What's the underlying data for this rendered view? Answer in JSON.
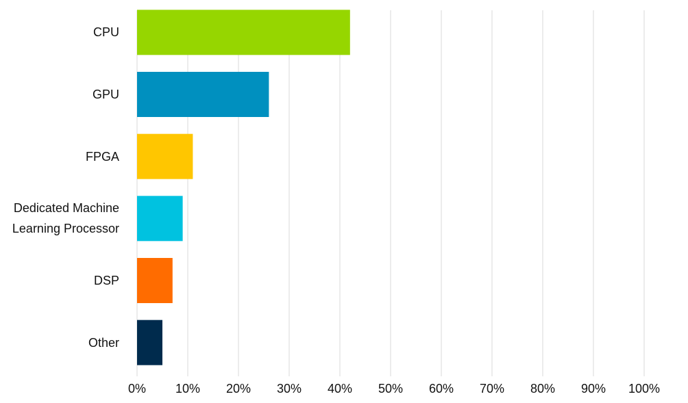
{
  "chart_data": {
    "type": "bar",
    "orientation": "horizontal",
    "categories": [
      "CPU",
      "GPU",
      "FPGA",
      "Dedicated Machine Learning Processor",
      "DSP",
      "Other"
    ],
    "values": [
      42,
      26,
      11,
      9,
      7,
      5
    ],
    "colors": [
      "#96d600",
      "#0090bf",
      "#ffc600",
      "#00c2e0",
      "#ff6c00",
      "#002b4d"
    ],
    "xlim": [
      0,
      100
    ],
    "xticks": [
      {
        "value": 0,
        "label": "0%"
      },
      {
        "value": 10,
        "label": "10%"
      },
      {
        "value": 20,
        "label": "20%"
      },
      {
        "value": 30,
        "label": "30%"
      },
      {
        "value": 40,
        "label": "40%"
      },
      {
        "value": 50,
        "label": "50%"
      },
      {
        "value": 60,
        "label": "60%"
      },
      {
        "value": 70,
        "label": "70%"
      },
      {
        "value": 80,
        "label": "80%"
      },
      {
        "value": 90,
        "label": "90%"
      },
      {
        "value": 100,
        "label": "100%"
      }
    ],
    "grid": true
  }
}
